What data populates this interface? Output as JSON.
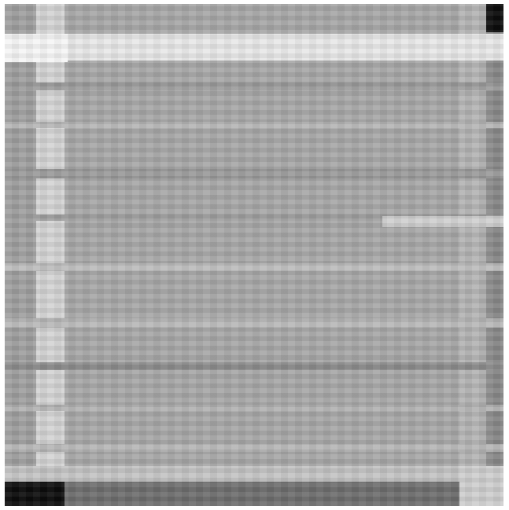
{
  "image": {
    "kind": "grayscale-pixelated-texture",
    "colors": {
      "page": "#ffffff",
      "base": "#a8a8a8",
      "light_band": "#e6e6e6",
      "white_band": "#f6f6f6",
      "mid_band": "#bcbcbc",
      "dark_band": "#888888",
      "right_strip": "#8a8a8a",
      "bottom_strip": "#6e6e6e",
      "corner_black": "#0c0c0c"
    }
  }
}
